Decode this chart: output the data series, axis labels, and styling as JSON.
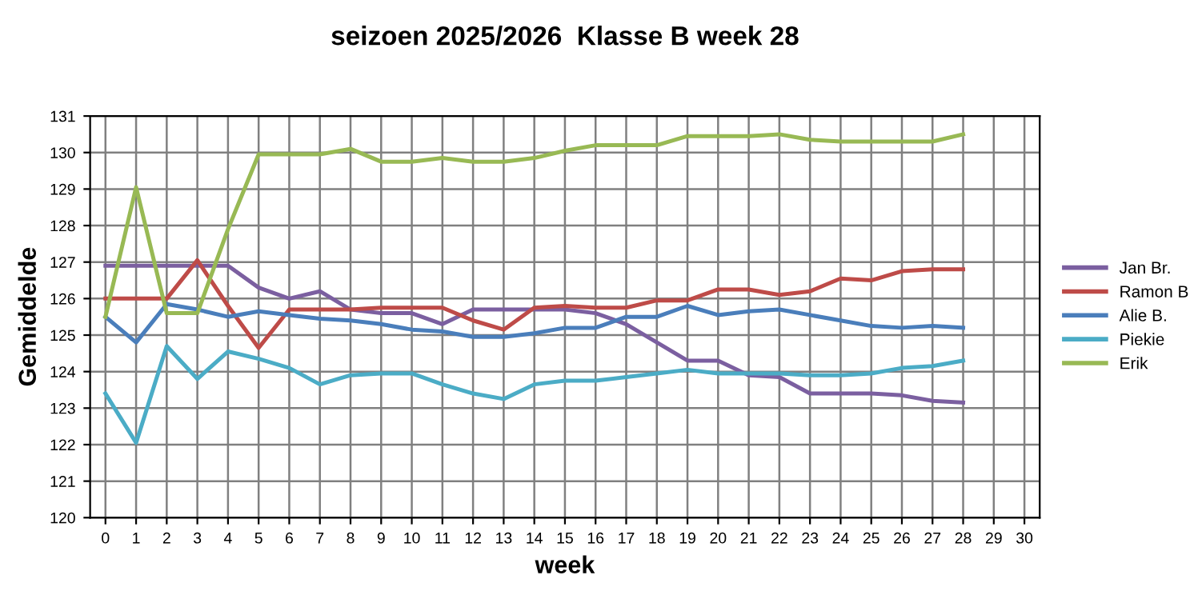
{
  "chart_data": {
    "type": "line",
    "title": "seizoen 2025/2026  Klasse B week 28",
    "xlabel": "week",
    "ylabel": "Gemiddelde",
    "x": [
      0,
      1,
      2,
      3,
      4,
      5,
      6,
      7,
      8,
      9,
      10,
      11,
      12,
      13,
      14,
      15,
      16,
      17,
      18,
      19,
      20,
      21,
      22,
      23,
      24,
      25,
      26,
      27,
      28
    ],
    "xlim": [
      -0.5,
      30.5
    ],
    "xticks": [
      0,
      1,
      2,
      3,
      4,
      5,
      6,
      7,
      8,
      9,
      10,
      11,
      12,
      13,
      14,
      15,
      16,
      17,
      18,
      19,
      20,
      21,
      22,
      23,
      24,
      25,
      26,
      27,
      28,
      29,
      30
    ],
    "ylim": [
      120,
      131
    ],
    "yticks": [
      120,
      121,
      122,
      123,
      124,
      125,
      126,
      127,
      128,
      129,
      130,
      131
    ],
    "grid": true,
    "legend": "right",
    "marker": "none",
    "line_style": "solid",
    "series": [
      {
        "name": "Jan Br.",
        "color": "#7b5fa0",
        "values": [
          126.9,
          126.9,
          126.9,
          126.9,
          126.9,
          126.3,
          126.0,
          126.2,
          125.7,
          125.6,
          125.6,
          125.3,
          125.7,
          125.7,
          125.7,
          125.7,
          125.6,
          125.3,
          124.8,
          124.3,
          124.3,
          123.9,
          123.85,
          123.4,
          123.4,
          123.4,
          123.35,
          123.2,
          123.15
        ]
      },
      {
        "name": "Ramon B",
        "color": "#be4b48",
        "values": [
          126.0,
          126.0,
          126.0,
          127.05,
          125.8,
          124.65,
          125.7,
          125.7,
          125.7,
          125.75,
          125.75,
          125.75,
          125.4,
          125.15,
          125.75,
          125.8,
          125.75,
          125.75,
          125.95,
          125.95,
          126.25,
          126.25,
          126.1,
          126.2,
          126.55,
          126.5,
          126.75,
          126.8,
          126.8
        ]
      },
      {
        "name": "Alie B.",
        "color": "#4a7ebb",
        "values": [
          125.5,
          124.8,
          125.85,
          125.7,
          125.5,
          125.65,
          125.55,
          125.45,
          125.4,
          125.3,
          125.15,
          125.1,
          124.95,
          124.95,
          125.05,
          125.2,
          125.2,
          125.5,
          125.5,
          125.8,
          125.55,
          125.65,
          125.7,
          125.55,
          125.4,
          125.25,
          125.2,
          125.25,
          125.2
        ]
      },
      {
        "name": "Piekie",
        "color": "#4bacc6",
        "values": [
          123.4,
          122.05,
          124.7,
          123.8,
          124.55,
          124.35,
          124.1,
          123.65,
          123.9,
          123.95,
          123.95,
          123.65,
          123.4,
          123.25,
          123.65,
          123.75,
          123.75,
          123.85,
          123.95,
          124.05,
          123.95,
          123.95,
          123.95,
          123.9,
          123.9,
          123.95,
          124.1,
          124.15,
          124.3
        ]
      },
      {
        "name": "Erik",
        "color": "#98b954",
        "values": [
          125.5,
          129.05,
          125.6,
          125.6,
          127.9,
          129.95,
          129.95,
          129.95,
          130.1,
          129.75,
          129.75,
          129.85,
          129.75,
          129.75,
          129.85,
          130.05,
          130.2,
          130.2,
          130.2,
          130.45,
          130.45,
          130.45,
          130.5,
          130.35,
          130.3,
          130.3,
          130.3,
          130.3,
          130.5
        ]
      }
    ]
  }
}
